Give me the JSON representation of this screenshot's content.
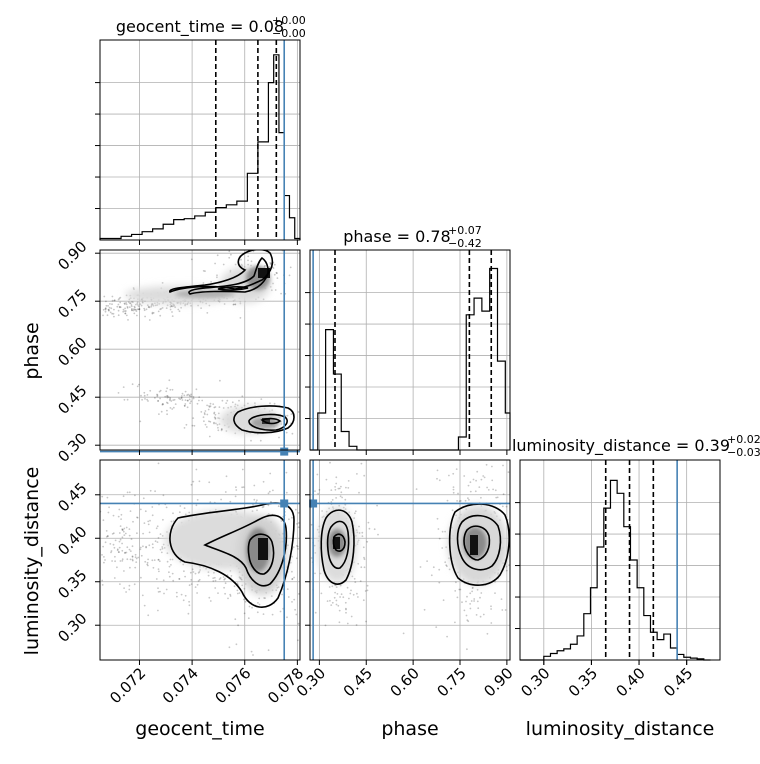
{
  "truth_color": "#4682b4",
  "chart_data": [
    {
      "type": "histogram",
      "panel": "geocent_time-marginal",
      "title": {
        "label": "geocent_time",
        "median": "0.08",
        "upper": "+0.00",
        "lower": "−0.00"
      },
      "xlim": [
        0.0705,
        0.0781
      ],
      "ylim": [
        0,
        1
      ],
      "x_ticks": [
        0.072,
        0.074,
        0.076,
        0.078
      ],
      "bin_edges": [
        0.0705,
        0.0709,
        0.0713,
        0.0717,
        0.0721,
        0.0725,
        0.0729,
        0.0733,
        0.0737,
        0.0741,
        0.0745,
        0.0749,
        0.0753,
        0.0757,
        0.0761,
        0.0765,
        0.0769,
        0.0771,
        0.0773,
        0.0775,
        0.0777,
        0.0779,
        0.0781
      ],
      "counts": [
        0.008,
        0.008,
        0.02,
        0.03,
        0.045,
        0.06,
        0.085,
        0.11,
        0.115,
        0.13,
        0.15,
        0.175,
        0.19,
        0.21,
        0.36,
        0.53,
        0.85,
        1.0,
        0.58,
        0.24,
        0.12,
        0.008
      ],
      "quantiles": [
        0.0749,
        0.0765,
        0.0772
      ],
      "truth": 0.0775
    },
    {
      "type": "histogram",
      "panel": "phase-marginal",
      "title": {
        "label": "phase",
        "median": "0.78",
        "upper": "+0.07",
        "lower": "−0.42"
      },
      "xlim": [
        0.27,
        0.91
      ],
      "ylim": [
        0,
        1
      ],
      "x_ticks": [
        0.3,
        0.45,
        0.6,
        0.75,
        0.9
      ],
      "bin_edges": [
        0.27,
        0.295,
        0.32,
        0.345,
        0.37,
        0.395,
        0.42,
        0.445,
        0.47,
        0.495,
        0.52,
        0.545,
        0.57,
        0.595,
        0.62,
        0.645,
        0.67,
        0.695,
        0.72,
        0.745,
        0.77,
        0.795,
        0.82,
        0.845,
        0.87,
        0.895,
        0.91
      ],
      "counts": [
        0.0,
        0.2,
        0.65,
        0.41,
        0.1,
        0.02,
        0.0,
        0.0,
        0.0,
        0.0,
        0.0,
        0.0,
        0.0,
        0.0,
        0.0,
        0.0,
        0.0,
        0.0,
        0.0,
        0.07,
        0.73,
        0.82,
        0.75,
        0.98,
        0.48,
        0.2
      ],
      "quantiles": [
        0.35,
        0.78,
        0.85
      ],
      "truth": 0.28
    },
    {
      "type": "histogram",
      "panel": "luminosity_distance-marginal",
      "title": {
        "label": "luminosity_distance",
        "median": "0.39",
        "upper": "+0.02",
        "lower": "−0.03"
      },
      "xlim": [
        0.275,
        0.485
      ],
      "ylim": [
        0,
        1
      ],
      "x_ticks": [
        0.3,
        0.35,
        0.4,
        0.45
      ],
      "bin_edges": [
        0.275,
        0.3,
        0.307,
        0.314,
        0.321,
        0.328,
        0.335,
        0.342,
        0.349,
        0.356,
        0.363,
        0.37,
        0.377,
        0.384,
        0.391,
        0.398,
        0.405,
        0.412,
        0.419,
        0.426,
        0.433,
        0.44,
        0.447,
        0.454,
        0.461,
        0.468,
        0.475
      ],
      "counts": [
        0.0,
        0.02,
        0.035,
        0.05,
        0.06,
        0.085,
        0.13,
        0.25,
        0.39,
        0.61,
        0.82,
        0.97,
        0.9,
        0.72,
        0.54,
        0.39,
        0.24,
        0.15,
        0.11,
        0.14,
        0.065,
        0.03,
        0.015,
        0.01,
        0.006,
        0.0
      ],
      "quantiles": [
        0.365,
        0.39,
        0.415
      ],
      "truth": 0.44
    },
    {
      "type": "contour",
      "panel": "geocent_time-vs-phase",
      "xlim": [
        0.0705,
        0.0781
      ],
      "ylim": [
        0.285,
        0.91
      ],
      "y_ticks": [
        0.3,
        0.45,
        0.6,
        0.75,
        0.9
      ],
      "ylabel": "phase",
      "truth": [
        0.0775,
        0.28
      ]
    },
    {
      "type": "contour",
      "panel": "geocent_time-vs-luminosity_distance",
      "xlim": [
        0.0705,
        0.0781
      ],
      "ylim": [
        0.26,
        0.49
      ],
      "x_ticks": [
        0.072,
        0.074,
        0.076,
        0.078
      ],
      "y_ticks": [
        0.3,
        0.35,
        0.4,
        0.45
      ],
      "xlabel": "geocent_time",
      "ylabel": "luminosity_distance",
      "truth": [
        0.0775,
        0.44
      ]
    },
    {
      "type": "contour",
      "panel": "phase-vs-luminosity_distance",
      "xlim": [
        0.27,
        0.91
      ],
      "ylim": [
        0.26,
        0.49
      ],
      "x_ticks": [
        0.3,
        0.45,
        0.6,
        0.75,
        0.9
      ],
      "xlabel": "phase",
      "truth": [
        0.28,
        0.44
      ]
    },
    {
      "type": "axis",
      "panel": "luminosity_distance-axis",
      "xlabel": "luminosity_distance"
    }
  ]
}
